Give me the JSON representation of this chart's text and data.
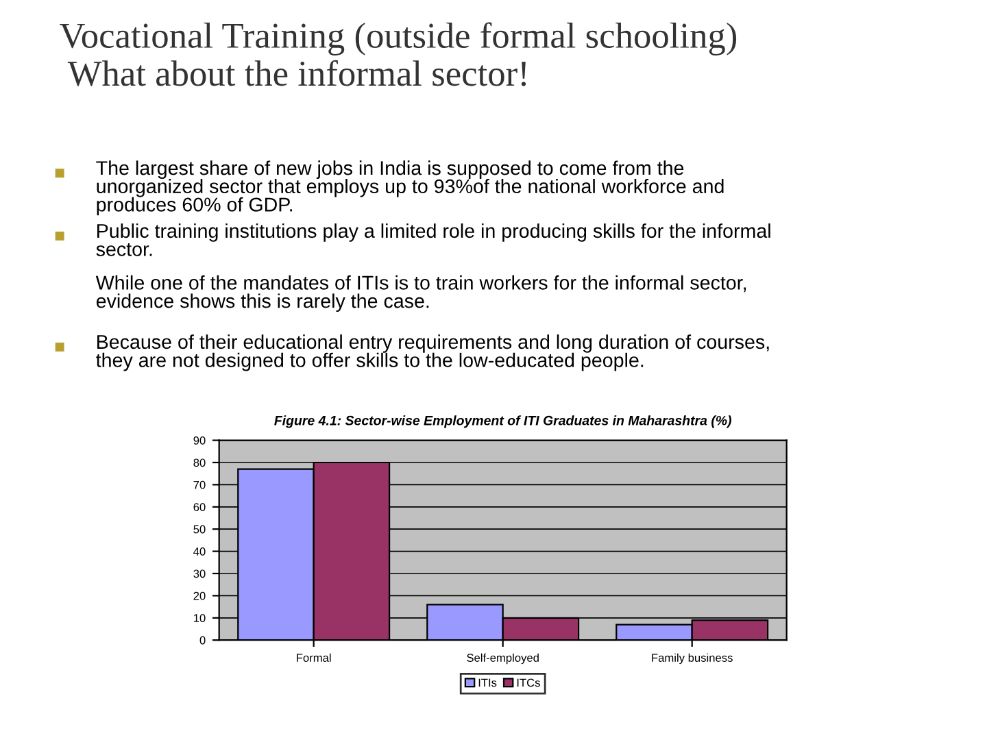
{
  "chart_data": {
    "type": "bar",
    "title": "Vocational Training (outside formal schooling)\n What about the informal sector!",
    "subtitle": "Figure 4.1: Sector-wise Employment of ITI Graduates in Maharashtra (%)",
    "annotations": [
      "The largest share of new jobs in India is supposed to come from the\nunorganized sector that employs up to 93%of the national workforce and\nproduces 60% of GDP.",
      "Public training institutions play a limited role in producing skills for the informal\nsector.",
      "While one of the mandates of ITIs is to train workers for the informal sector,\nevidence shows this is rarely the case.",
      "Because of their educational entry requirements and long duration of courses,\nthey are not designed to offer skills to the low-educated people."
    ],
    "categories": [
      "Formal",
      "Self-employed",
      "Family business"
    ],
    "series": [
      {
        "name": "ITIs",
        "color": "#9999ff",
        "values": [
          77,
          16,
          7
        ]
      },
      {
        "name": "ITCs",
        "color": "#993366",
        "values": [
          80,
          10,
          9
        ]
      }
    ],
    "ylim": [
      0,
      90
    ],
    "yticks": [
      0,
      10,
      20,
      30,
      40,
      50,
      60,
      70,
      80,
      90
    ],
    "grid": "y",
    "legend": "bottom"
  }
}
